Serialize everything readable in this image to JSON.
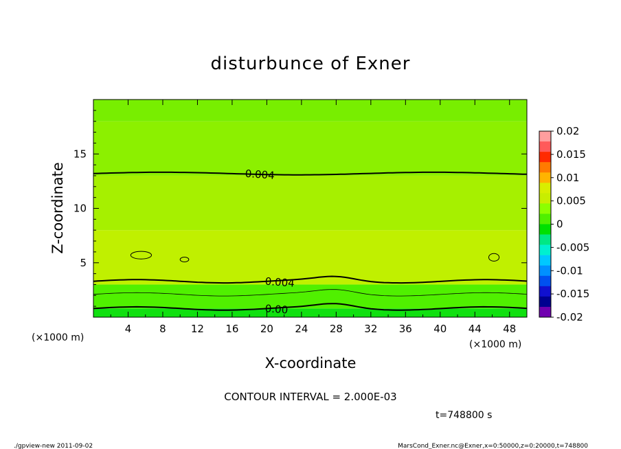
{
  "chart_data": {
    "type": "heatmap",
    "title": "disturbunce of Exner",
    "xlabel": "X-coordinate",
    "ylabel": "Z-coordinate",
    "x_unit": "(×1000 m)",
    "xlim": [
      0,
      50
    ],
    "ylim": [
      0,
      20
    ],
    "x_ticks": [
      4,
      8,
      12,
      16,
      20,
      24,
      28,
      32,
      36,
      40,
      44,
      48
    ],
    "y_ticks": [
      5,
      10,
      15
    ],
    "colorbar": {
      "labels": [
        "0.02",
        "0.015",
        "0.01",
        "0.005",
        "0",
        "-0.005",
        "-0.01",
        "-0.015",
        "-0.02"
      ],
      "colors": [
        "#ff9e9e",
        "#ff5a5a",
        "#ff2a00",
        "#ff7a00",
        "#ffb400",
        "#d9ee00",
        "#c8ee00",
        "#8cff00",
        "#50f000",
        "#00e000",
        "#00e884",
        "#00f0d0",
        "#00c8ff",
        "#0090ff",
        "#0050f0",
        "#1010d0",
        "#000090",
        "#7000b0"
      ]
    },
    "field_bands": [
      {
        "z_from": 0.0,
        "z_to": 0.8,
        "color": "#10e010"
      },
      {
        "z_from": 0.8,
        "z_to": 3.0,
        "color": "#50f000"
      },
      {
        "z_from": 3.0,
        "z_to": 8.0,
        "color": "#c0f000"
      },
      {
        "z_from": 8.0,
        "z_to": 13.0,
        "color": "#a6f000"
      },
      {
        "z_from": 13.0,
        "z_to": 18.0,
        "color": "#8cf000"
      },
      {
        "z_from": 18.0,
        "z_to": 20.0,
        "color": "#78ee00"
      }
    ],
    "contours": [
      {
        "level": "0.004",
        "z": 13.2,
        "label": "0.004",
        "label_x": 17.5
      },
      {
        "level": "0.004",
        "z": 3.3,
        "label": "0.004",
        "label_x": 19.8
      },
      {
        "level": "0.003",
        "z": 2.1,
        "label": "",
        "label_x": null
      },
      {
        "level": "0.00",
        "z": 0.8,
        "label": "0.00",
        "label_x": 19.8
      }
    ],
    "contour_interval_text": "CONTOUR INTERVAL = 2.000E-03",
    "time_text": "t=748800 s"
  },
  "footer": {
    "left": "./gpview-new   2011-09-02",
    "right": "MarsCond_Exner.nc@Exner,x=0:50000,z=0:20000,t=748800"
  }
}
